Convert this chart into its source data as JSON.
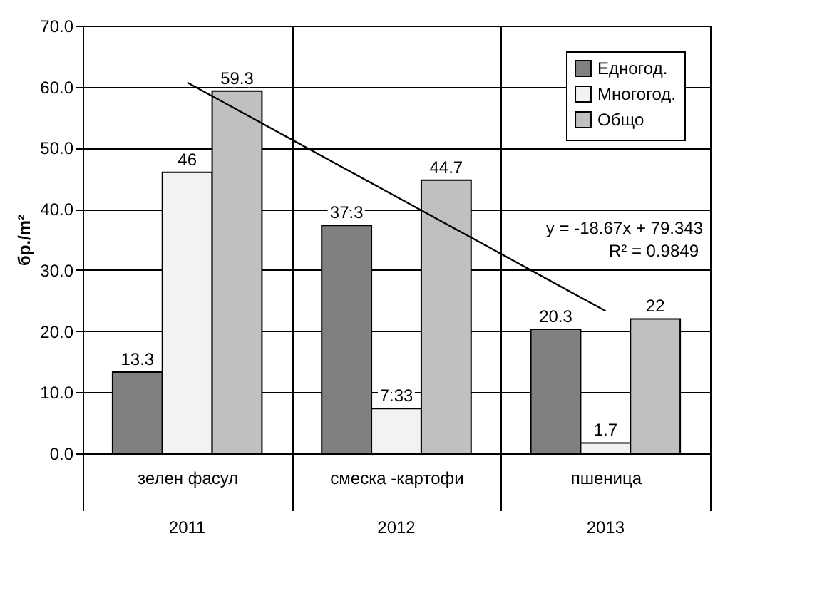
{
  "chart_data": {
    "type": "bar",
    "ylabel": "бр./m²",
    "categories": [
      "зелен фасул",
      "смеска -картофи",
      "пшеница"
    ],
    "series": [
      {
        "name": "Едногод.",
        "color": "#808080",
        "values": [
          13.3,
          37.3,
          20.3
        ],
        "value_labels": [
          "13.3",
          "37.3",
          "20.3"
        ]
      },
      {
        "name": "Многогод.",
        "color": "#f2f2f2",
        "values": [
          46,
          7.33,
          1.7
        ],
        "value_labels": [
          "46",
          "7.33",
          "1.7"
        ]
      },
      {
        "name": "Общо",
        "color": "#c0c0c0",
        "values": [
          59.3,
          44.7,
          22
        ],
        "value_labels": [
          "59.3",
          "44.7",
          "22"
        ]
      },
      {
        "type": "line",
        "color": "#000000",
        "x": [
          "зелен фасул",
          "смеска -картофи",
          "пшеница"
        ],
        "values": [
          60.7,
          42.0,
          23.3
        ]
      }
    ],
    "ylim": [
      0,
      70
    ],
    "yticks": [
      {
        "value": 0,
        "label": "0.0"
      },
      {
        "value": 10,
        "label": "10.0"
      },
      {
        "value": 20,
        "label": "20.0"
      },
      {
        "value": 30,
        "label": "30.0"
      },
      {
        "value": 40,
        "label": "40.0"
      },
      {
        "value": 50,
        "label": "50.0"
      },
      {
        "value": 60,
        "label": "60.0"
      },
      {
        "value": 70,
        "label": "70.0"
      }
    ],
    "grid": "y",
    "legend": "top right",
    "annotations": [
      "y = -18.67x + 79.343",
      "R² = 0.9849",
      "2011",
      "2012",
      "2013"
    ]
  }
}
